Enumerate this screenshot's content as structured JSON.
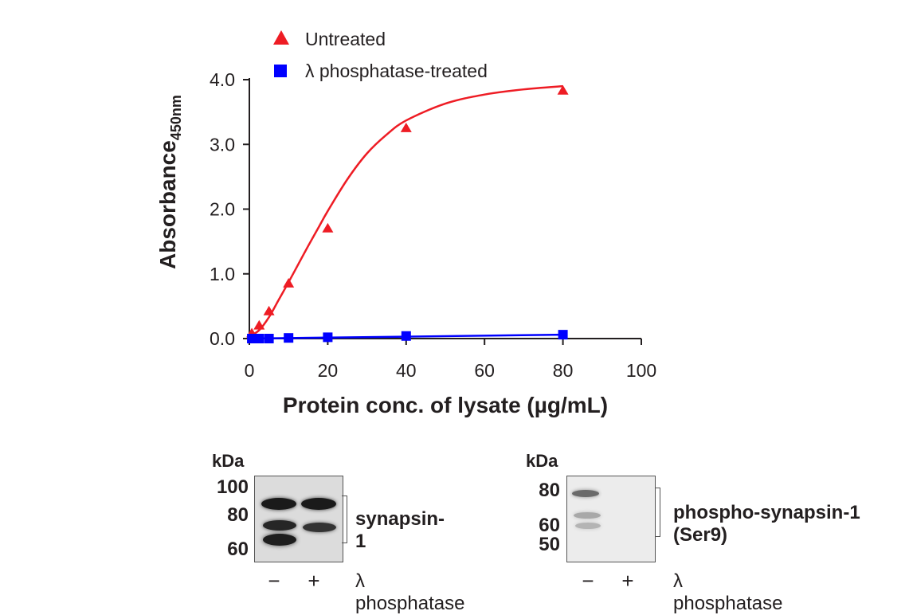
{
  "chart_data": {
    "type": "scatter",
    "ylabel_main": "Absorbance",
    "ylabel_sub": "450nm",
    "xlabel": "Protein conc. of lysate (µg/mL)",
    "xlim": [
      0,
      100
    ],
    "ylim": [
      0,
      4
    ],
    "xticks": [
      "0",
      "20",
      "40",
      "60",
      "80",
      "100"
    ],
    "yticks": [
      "0.0",
      "1.0",
      "2.0",
      "3.0",
      "4.0"
    ],
    "legend_position": "top",
    "grid": false,
    "series": [
      {
        "name": "Untreated",
        "marker": "triangle",
        "color": "#ee1c24",
        "x": [
          0.625,
          2.5,
          5,
          10,
          20,
          40,
          80
        ],
        "y": [
          0.08,
          0.2,
          0.42,
          0.85,
          1.7,
          3.25,
          3.83
        ],
        "fit": {
          "x": [
            0,
            2.5,
            5,
            7.5,
            10,
            12.5,
            15,
            17.5,
            20,
            25,
            30,
            35,
            40,
            50,
            60,
            70,
            80
          ],
          "y": [
            0.03,
            0.13,
            0.33,
            0.6,
            0.87,
            1.15,
            1.43,
            1.7,
            1.97,
            2.46,
            2.86,
            3.15,
            3.37,
            3.63,
            3.77,
            3.85,
            3.9
          ]
        }
      },
      {
        "name": "λ phosphatase-treated",
        "marker": "square",
        "color": "#0000ff",
        "x": [
          0.625,
          2.5,
          5,
          10,
          20,
          40,
          80
        ],
        "y": [
          0.0,
          0.0,
          0.0,
          0.01,
          0.02,
          0.04,
          0.06
        ],
        "fit": {
          "x": [
            0,
            80
          ],
          "y": [
            0.0,
            0.06
          ]
        }
      }
    ]
  },
  "blots": [
    {
      "kda_label": "kDa",
      "markers": [
        "100",
        "80",
        "60"
      ],
      "protein_label": "synapsin-1",
      "lanes": [
        "−",
        "+"
      ],
      "treatment_label": "λ phosphatase"
    },
    {
      "kda_label": "kDa",
      "markers": [
        "80",
        "60",
        "50"
      ],
      "protein_label": "phospho-synapsin-1\n(Ser9)",
      "lanes": [
        "−",
        "+"
      ],
      "treatment_label": "λ phosphatase"
    }
  ],
  "colors": {
    "axis": "#231f20",
    "untreated": "#ee1c24",
    "treated": "#0000ff"
  }
}
